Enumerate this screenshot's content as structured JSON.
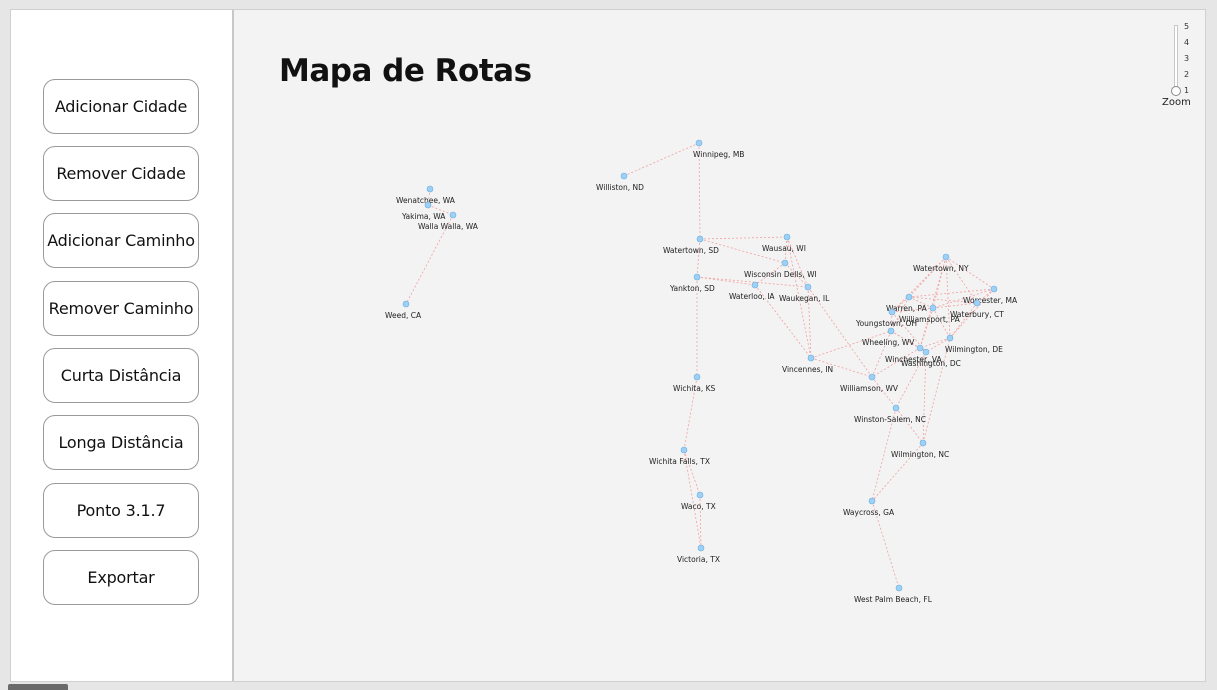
{
  "sidebar": {
    "buttons": [
      {
        "id": "add-city",
        "label": "Adicionar Cidade"
      },
      {
        "id": "remove-city",
        "label": "Remover Cidade"
      },
      {
        "id": "add-path",
        "label": "Adicionar Caminho"
      },
      {
        "id": "remove-path",
        "label": "Remover Caminho"
      },
      {
        "id": "short-distance",
        "label": "Curta Distância"
      },
      {
        "id": "long-distance",
        "label": "Longa Distância"
      },
      {
        "id": "point-317",
        "label": "Ponto 3.1.7"
      },
      {
        "id": "export",
        "label": "Exportar"
      }
    ]
  },
  "map": {
    "title": "Mapa de Rotas",
    "node_color": "#9ed0f5",
    "edge_color": "#f2a0a0",
    "cities": [
      {
        "name": "Winnipeg, MB"
      },
      {
        "name": "Williston, ND"
      },
      {
        "name": "Wenatchee, WA"
      },
      {
        "name": "Yakima, WA"
      },
      {
        "name": "Walla Walla, WA"
      },
      {
        "name": "Weed, CA"
      },
      {
        "name": "Watertown, SD"
      },
      {
        "name": "Wausau, WI"
      },
      {
        "name": "Wisconsin Dells, WI"
      },
      {
        "name": "Yankton, SD"
      },
      {
        "name": "Waterloo, IA"
      },
      {
        "name": "Waukegan, IL"
      },
      {
        "name": "Vincennes, IN"
      },
      {
        "name": "Wichita, KS"
      },
      {
        "name": "Wichita Falls, TX"
      },
      {
        "name": "Waco, TX"
      },
      {
        "name": "Victoria, TX"
      },
      {
        "name": "Watertown, NY"
      },
      {
        "name": "Worcester, MA"
      },
      {
        "name": "Warren, PA"
      },
      {
        "name": "Waterbury, CT"
      },
      {
        "name": "Youngstown, OH"
      },
      {
        "name": "Williamsport, PA"
      },
      {
        "name": "Wheeling, WV"
      },
      {
        "name": "Wilmington, DE"
      },
      {
        "name": "Winchester, VA"
      },
      {
        "name": "Washington, DC"
      },
      {
        "name": "Williamson, WV"
      },
      {
        "name": "Winston-Salem, NC"
      },
      {
        "name": "Wilmington, NC"
      },
      {
        "name": "Waycross, GA"
      },
      {
        "name": "West Palm Beach, FL"
      }
    ]
  },
  "zoom": {
    "label": "Zoom",
    "ticks": [
      "5",
      "4",
      "3",
      "2",
      "1"
    ],
    "value": 1,
    "min": 1,
    "max": 5
  }
}
